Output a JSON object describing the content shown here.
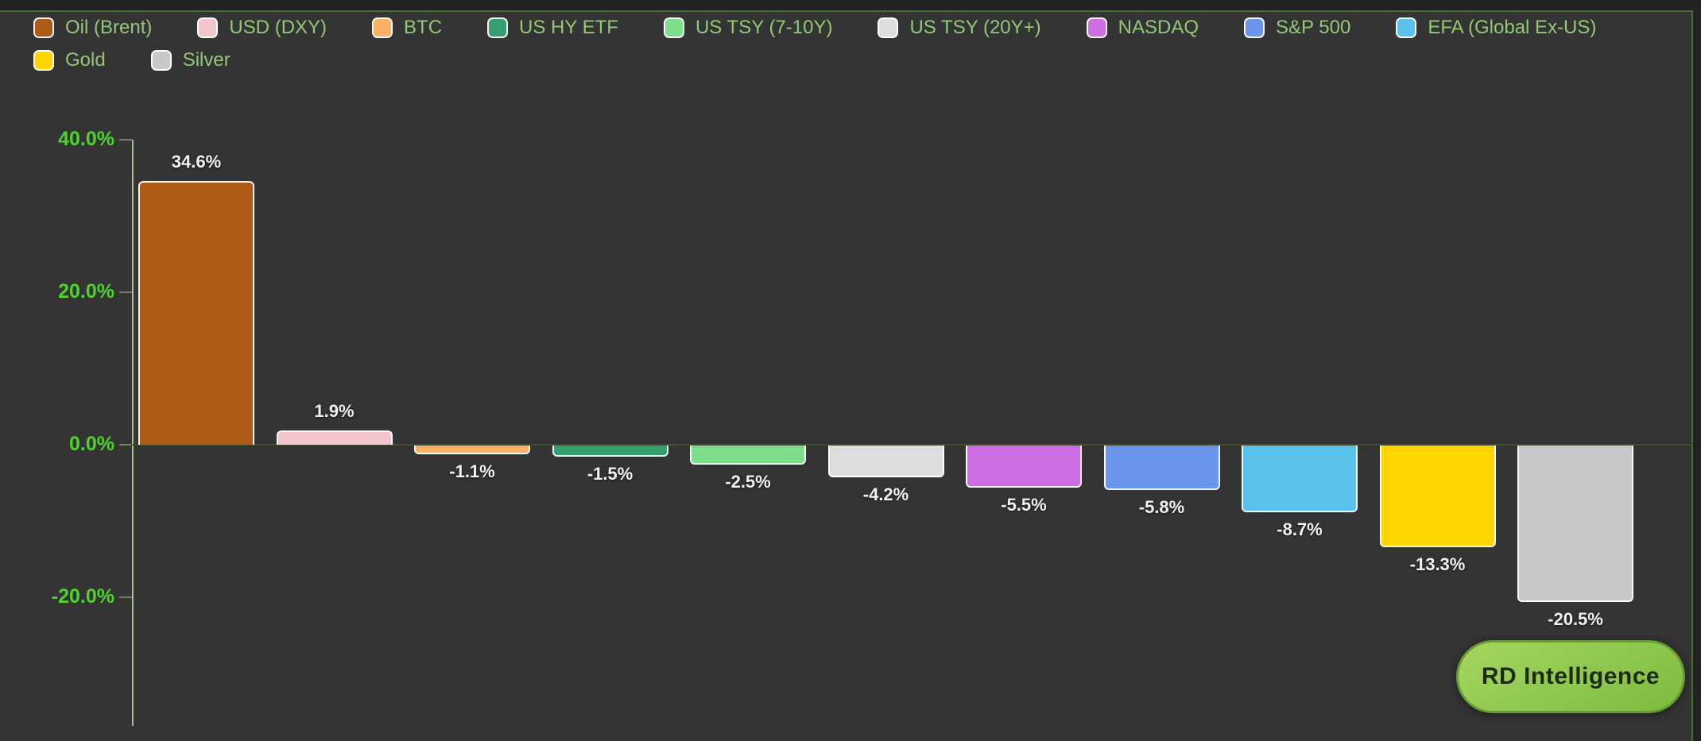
{
  "page": {
    "background": "#222222",
    "card_background": "#343434",
    "card_border_color": "#4b6a35"
  },
  "legend": {
    "text_color": "#93c877",
    "items": [
      {
        "id": "oil-brent",
        "label": "Oil (Brent)",
        "color": "#ad5b16"
      },
      {
        "id": "usd-dxy",
        "label": "USD (DXY)",
        "color": "#f4c4cc"
      },
      {
        "id": "btc",
        "label": "BTC",
        "color": "#fbb066"
      },
      {
        "id": "us-hy-etf",
        "label": "US HY ETF",
        "color": "#359f72"
      },
      {
        "id": "us-tsy-7-10y",
        "label": "US TSY (7-10Y)",
        "color": "#7ede8c"
      },
      {
        "id": "us-tsy-20y",
        "label": "US TSY (20Y+)",
        "color": "#dedcde"
      },
      {
        "id": "nasdaq",
        "label": "NASDAQ",
        "color": "#cf6ee4"
      },
      {
        "id": "sp-500",
        "label": "S&P 500",
        "color": "#6b95ea"
      },
      {
        "id": "efa-global-ex-us",
        "label": "EFA (Global Ex-US)",
        "color": "#58c1ec"
      },
      {
        "id": "gold",
        "label": "Gold",
        "color": "#ffd402"
      },
      {
        "id": "silver",
        "label": "Silver",
        "color": "#c9c7c9"
      }
    ]
  },
  "chart_data": {
    "type": "bar",
    "title": "",
    "xlabel": "",
    "ylabel": "",
    "categories": [
      "Oil (Brent)",
      "USD (DXY)",
      "BTC",
      "US HY ETF",
      "US TSY (7-10Y)",
      "US TSY (20Y+)",
      "NASDAQ",
      "S&P 500",
      "EFA (Global Ex-US)",
      "Gold",
      "Silver"
    ],
    "category_ids": [
      "oil-brent",
      "usd-dxy",
      "btc",
      "us-hy-etf",
      "us-tsy-7-10y",
      "us-tsy-20y",
      "nasdaq",
      "sp-500",
      "efa-global-ex-us",
      "gold",
      "silver"
    ],
    "values": [
      34.6,
      1.9,
      -1.1,
      -1.5,
      -2.5,
      -4.2,
      -5.5,
      -5.8,
      -8.7,
      -13.3,
      -20.5
    ],
    "bar_labels": [
      "34.6%",
      "1.9%",
      "-1.1%",
      "-1.5%",
      "-2.5%",
      "-4.2%",
      "-5.5%",
      "-5.8%",
      "-8.7%",
      "-13.3%",
      "-20.5%"
    ],
    "colors": [
      "#ad5b16",
      "#f4c4cc",
      "#fbb066",
      "#359f72",
      "#7ede8c",
      "#dedcde",
      "#cf6ee4",
      "#6b95ea",
      "#58c1ec",
      "#ffd402",
      "#c9c7c9"
    ],
    "yticks": [
      {
        "label": "40.0%",
        "value": 40
      },
      {
        "label": "20.0%",
        "value": 20
      },
      {
        "label": "0.0%",
        "value": 0
      },
      {
        "label": "-20.0%",
        "value": -20
      }
    ],
    "ylim": [
      -37,
      40.5
    ],
    "grid": false,
    "legend_position": "top",
    "tick_label_color": "#4ed32a",
    "axis_line_color": "#a7bb99",
    "zero_line_color": "#41502f",
    "value_label_color": "#f2f2f2"
  },
  "badge": {
    "label": "RD Intelligence",
    "background": "#8ec84e",
    "border_color": "#679b35",
    "text_color": "#1f2a14"
  }
}
